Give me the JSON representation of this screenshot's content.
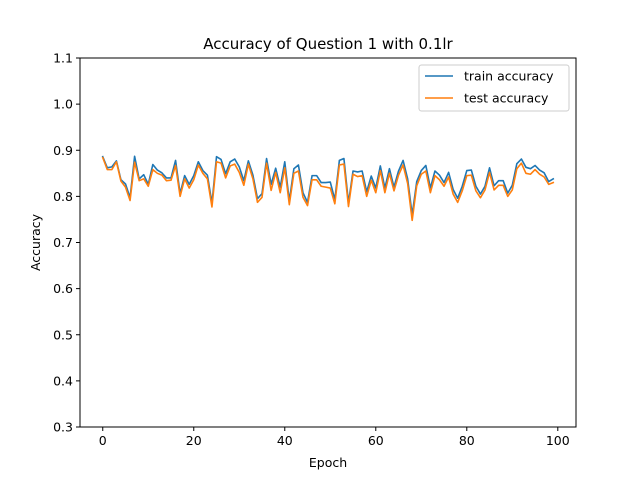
{
  "chart_data": {
    "type": "line",
    "title": "Accuracy of Question 1 with 0.1lr",
    "xlabel": "Epoch",
    "ylabel": "Accuracy",
    "xlim": [
      -5,
      104
    ],
    "ylim": [
      0.3,
      1.1
    ],
    "xticks": [
      0,
      20,
      40,
      60,
      80,
      100
    ],
    "yticks": [
      0.3,
      0.4,
      0.5,
      0.6,
      0.7,
      0.8,
      0.9,
      1.0,
      1.1
    ],
    "xtick_labels": [
      "0",
      "20",
      "40",
      "60",
      "80",
      "100"
    ],
    "ytick_labels": [
      "0.3",
      "0.4",
      "0.5",
      "0.6",
      "0.7",
      "0.8",
      "0.9",
      "1.0",
      "1.1"
    ],
    "grid": false,
    "legend_position": "top-right",
    "series": [
      {
        "name": "train accuracy",
        "color": "#1f77b4",
        "x": [
          0,
          1,
          2,
          3,
          4,
          5,
          6,
          7,
          8,
          9,
          10,
          11,
          12,
          13,
          14,
          15,
          16,
          17,
          18,
          19,
          20,
          21,
          22,
          23,
          24,
          25,
          26,
          27,
          28,
          29,
          30,
          31,
          32,
          33,
          34,
          35,
          36,
          37,
          38,
          39,
          40,
          41,
          42,
          43,
          44,
          45,
          46,
          47,
          48,
          49,
          50,
          51,
          52,
          53,
          54,
          55,
          56,
          57,
          58,
          59,
          60,
          61,
          62,
          63,
          64,
          65,
          66,
          67,
          68,
          69,
          70,
          71,
          72,
          73,
          74,
          75,
          76,
          77,
          78,
          79,
          80,
          81,
          82,
          83,
          84,
          85,
          86,
          87,
          88,
          89,
          90,
          91,
          92,
          93,
          94,
          95,
          96,
          97,
          98,
          99
        ],
        "values": [
          0.886,
          0.862,
          0.864,
          0.877,
          0.836,
          0.827,
          0.797,
          0.887,
          0.838,
          0.847,
          0.826,
          0.869,
          0.857,
          0.851,
          0.84,
          0.84,
          0.878,
          0.806,
          0.845,
          0.826,
          0.845,
          0.875,
          0.856,
          0.846,
          0.785,
          0.886,
          0.88,
          0.849,
          0.875,
          0.881,
          0.864,
          0.834,
          0.877,
          0.846,
          0.795,
          0.806,
          0.882,
          0.826,
          0.861,
          0.82,
          0.875,
          0.79,
          0.86,
          0.868,
          0.808,
          0.787,
          0.845,
          0.845,
          0.83,
          0.83,
          0.831,
          0.793,
          0.878,
          0.882,
          0.786,
          0.855,
          0.853,
          0.855,
          0.81,
          0.844,
          0.818,
          0.866,
          0.818,
          0.86,
          0.82,
          0.855,
          0.878,
          0.838,
          0.76,
          0.832,
          0.856,
          0.867,
          0.818,
          0.855,
          0.846,
          0.83,
          0.852,
          0.815,
          0.796,
          0.822,
          0.856,
          0.857,
          0.822,
          0.805,
          0.822,
          0.862,
          0.823,
          0.834,
          0.834,
          0.807,
          0.824,
          0.871,
          0.881,
          0.863,
          0.86,
          0.867,
          0.857,
          0.851,
          0.832,
          0.838
        ]
      },
      {
        "name": "test accuracy",
        "color": "#ff7f0e",
        "x": [
          0,
          1,
          2,
          3,
          4,
          5,
          6,
          7,
          8,
          9,
          10,
          11,
          12,
          13,
          14,
          15,
          16,
          17,
          18,
          19,
          20,
          21,
          22,
          23,
          24,
          25,
          26,
          27,
          28,
          29,
          30,
          31,
          32,
          33,
          34,
          35,
          36,
          37,
          38,
          39,
          40,
          41,
          42,
          43,
          44,
          45,
          46,
          47,
          48,
          49,
          50,
          51,
          52,
          53,
          54,
          55,
          56,
          57,
          58,
          59,
          60,
          61,
          62,
          63,
          64,
          65,
          66,
          67,
          68,
          69,
          70,
          71,
          72,
          73,
          74,
          75,
          76,
          77,
          78,
          79,
          80,
          81,
          82,
          83,
          84,
          85,
          86,
          87,
          88,
          89,
          90,
          91,
          92,
          93,
          94,
          95,
          96,
          97,
          98,
          99
        ],
        "values": [
          0.884,
          0.858,
          0.858,
          0.875,
          0.833,
          0.82,
          0.791,
          0.874,
          0.834,
          0.838,
          0.822,
          0.858,
          0.85,
          0.846,
          0.834,
          0.835,
          0.867,
          0.8,
          0.838,
          0.818,
          0.836,
          0.868,
          0.85,
          0.838,
          0.777,
          0.875,
          0.872,
          0.84,
          0.866,
          0.87,
          0.852,
          0.824,
          0.87,
          0.838,
          0.787,
          0.798,
          0.872,
          0.813,
          0.852,
          0.808,
          0.862,
          0.782,
          0.85,
          0.855,
          0.798,
          0.78,
          0.836,
          0.836,
          0.822,
          0.82,
          0.818,
          0.784,
          0.868,
          0.87,
          0.778,
          0.848,
          0.843,
          0.845,
          0.8,
          0.835,
          0.808,
          0.856,
          0.808,
          0.85,
          0.812,
          0.846,
          0.868,
          0.828,
          0.748,
          0.823,
          0.848,
          0.855,
          0.808,
          0.845,
          0.836,
          0.822,
          0.842,
          0.805,
          0.787,
          0.812,
          0.845,
          0.846,
          0.812,
          0.797,
          0.814,
          0.852,
          0.814,
          0.824,
          0.824,
          0.8,
          0.814,
          0.86,
          0.872,
          0.85,
          0.848,
          0.858,
          0.848,
          0.842,
          0.826,
          0.83
        ]
      }
    ]
  }
}
